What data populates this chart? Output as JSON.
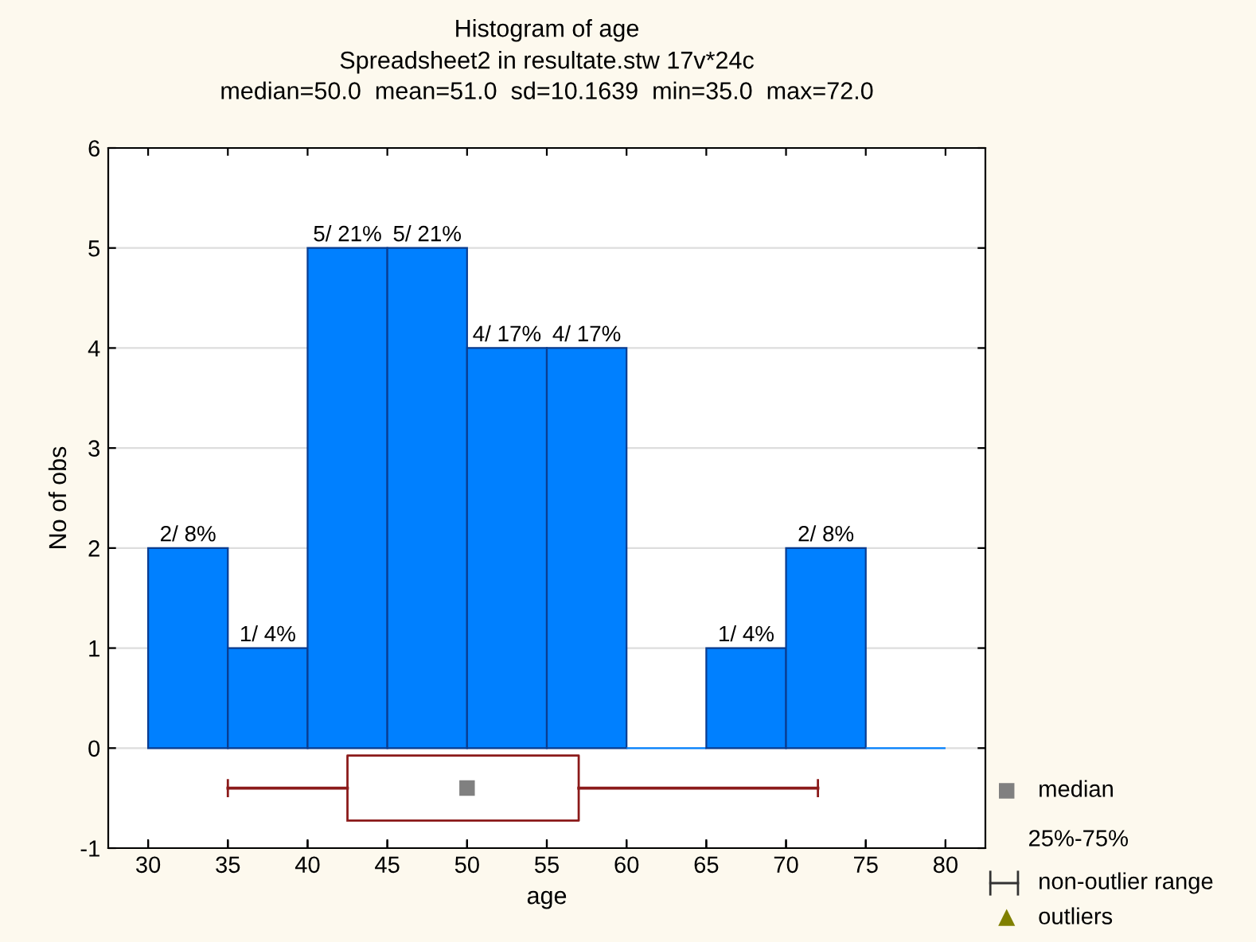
{
  "chart_data": [
    {
      "type": "histogram",
      "title": "Histogram of age",
      "subtitle": "Spreadsheet2 in resultate.stw 17v*24c\nmedian=50.0  mean=51.0  sd=10.1639  min=35.0  max=72.0",
      "ylabel": "No of obs",
      "bins": [
        30,
        35,
        40,
        45,
        50,
        55,
        60,
        65,
        70,
        75,
        80
      ],
      "color": "#0080ff",
      "values": [
        2,
        1,
        5,
        5,
        4,
        4,
        0,
        1,
        2,
        0
      ],
      "value_labels": [
        "2/ 8%",
        "1/ 4%",
        "5/ 21%",
        "5/ 21%",
        "4/ 17%",
        "4/ 17%",
        null,
        "1/ 4%",
        "2/ 8%",
        null
      ],
      "grid": "y",
      "tick_labels": "y",
      "xlim": [
        27.5,
        82.5
      ],
      "xticks": [
        30,
        35,
        40,
        45,
        50,
        55,
        60,
        65,
        70,
        75,
        80
      ],
      "ylim": [
        -1,
        6
      ],
      "yticks": [
        -1,
        0,
        1,
        2,
        3,
        4,
        5,
        6
      ]
    },
    {
      "type": "box",
      "orientation": "horizontal",
      "xlabel": "age",
      "categories": [
        null
      ],
      "color": "#8b1a1a",
      "boxes": [
        {
          "low": 35,
          "q1": 42.5,
          "median": 50,
          "q3": 57,
          "high": 72
        }
      ],
      "annotations": [
        "median",
        "25%-75%",
        "non-outlier range",
        "outliers"
      ],
      "tick_labels": "x",
      "xlim": [
        27.5,
        82.5
      ],
      "xticks": [
        30,
        35,
        40,
        45,
        50,
        55,
        60,
        65,
        70,
        75,
        80
      ]
    }
  ]
}
